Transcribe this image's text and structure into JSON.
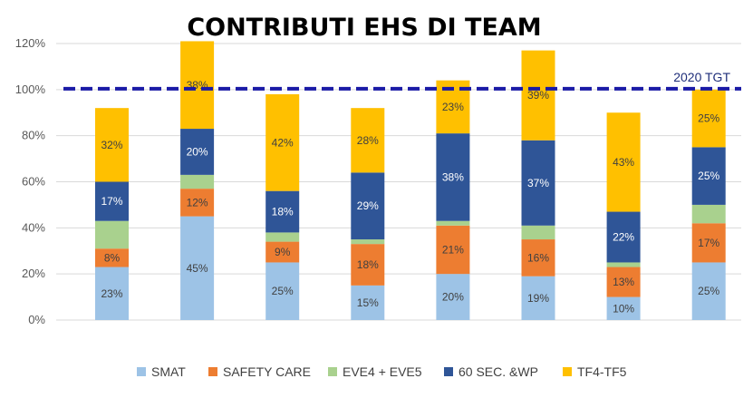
{
  "chart_data": {
    "type": "bar",
    "stacked": true,
    "title": "CONTRIBUTI EHS DI TEAM",
    "xlabel": "",
    "ylabel": "",
    "ylim": [
      0,
      120
    ],
    "yticks": [
      "0%",
      "20%",
      "40%",
      "60%",
      "80%",
      "100%",
      "120%"
    ],
    "categories": [
      "",
      "",
      "",
      "",
      "",
      "",
      "",
      ""
    ],
    "grid": true,
    "legend_position": "bottom",
    "series": [
      {
        "name": "SMAT",
        "color": "#9dc3e6",
        "values": [
          23,
          45,
          25,
          15,
          20,
          19,
          10,
          25
        ],
        "labels": [
          "23%",
          "45%",
          "25%",
          "15%",
          "20%",
          "19%",
          "10%",
          "25%"
        ],
        "label_color": "#404040"
      },
      {
        "name": "SAFETY CARE",
        "color": "#ed7d31",
        "values": [
          8,
          12,
          9,
          18,
          21,
          16,
          13,
          17
        ],
        "labels": [
          "8%",
          "12%",
          "9%",
          "18%",
          "21%",
          "16%",
          "13%",
          "17%"
        ],
        "label_color": "#404040"
      },
      {
        "name": "EVE4 + EVE5",
        "color": "#a9d18e",
        "values": [
          12,
          6,
          4,
          2,
          2,
          6,
          2,
          8
        ],
        "labels": [
          "",
          "",
          "",
          "",
          "",
          "",
          "",
          ""
        ],
        "label_color": "#404040"
      },
      {
        "name": "60 SEC. &WP",
        "color": "#2f5597",
        "values": [
          17,
          20,
          18,
          29,
          38,
          37,
          22,
          25
        ],
        "labels": [
          "17%",
          "20%",
          "18%",
          "29%",
          "38%",
          "37%",
          "22%",
          "25%"
        ],
        "label_color": "#ffffff"
      },
      {
        "name": "TF4-TF5",
        "color": "#ffc000",
        "values": [
          32,
          38,
          42,
          28,
          23,
          39,
          43,
          25
        ],
        "labels": [
          "32%",
          "38%",
          "42%",
          "28%",
          "23%",
          "39%",
          "43%",
          "25%"
        ],
        "label_color": "#404040"
      }
    ],
    "reference_line": {
      "value": 100,
      "label": "2020 TGT",
      "color": "#1a1aa6"
    }
  }
}
